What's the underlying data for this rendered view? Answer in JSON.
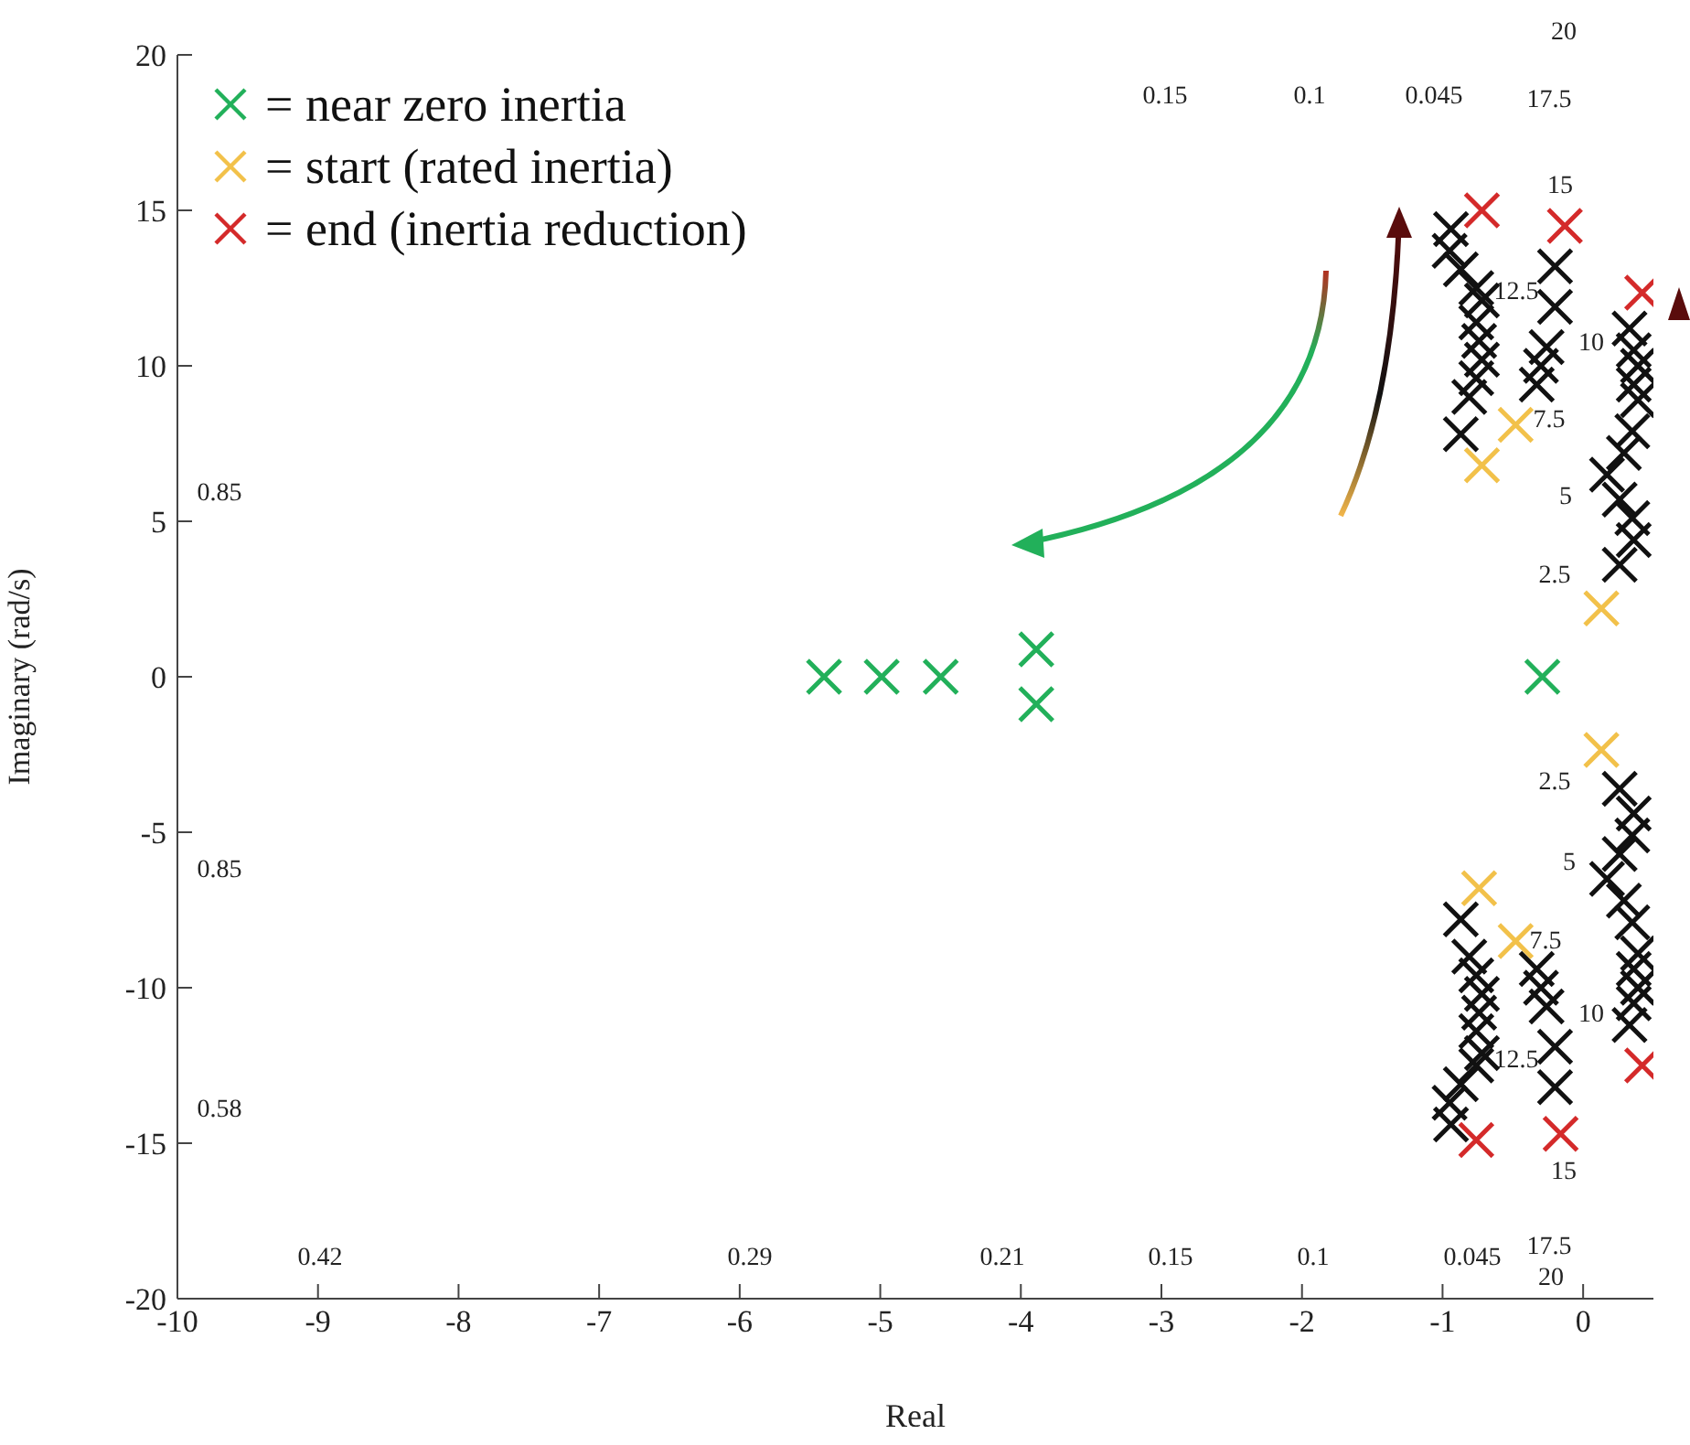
{
  "chart_data": {
    "type": "scatter",
    "xlabel": "Real",
    "ylabel": "Imaginary (rad/s)",
    "xlim": [
      -10,
      0.5
    ],
    "xticks": [
      -10,
      -9,
      -8,
      -7,
      -6,
      -5,
      -4,
      -3,
      -2,
      -1,
      0
    ],
    "ylim": [
      -20,
      20
    ],
    "yticks": [
      -20,
      -15,
      -10,
      -5,
      0,
      5,
      10,
      15,
      20
    ],
    "legend": "top left",
    "marker": "cross",
    "series": [
      {
        "name": "= near zero inertia",
        "color": "#22b05a",
        "x": [
          -0.29,
          -5.4,
          -4.99,
          -4.57,
          -3.89,
          -3.89
        ],
        "values": [
          0,
          0,
          0,
          0,
          0.88,
          -0.88
        ]
      },
      {
        "name": "= start (rated inertia)",
        "color": "#f2c14a",
        "x": [
          -0.48,
          -0.72,
          0.13,
          0.13,
          -0.74,
          -0.48
        ],
        "values": [
          8.1,
          6.8,
          2.2,
          -2.35,
          -6.8,
          -8.5
        ]
      },
      {
        "name": "= end (inertia reduction)",
        "color": "#d42a2a",
        "x": [
          -0.72,
          -0.13,
          0.42,
          -0.76,
          -0.16,
          0.42
        ],
        "values": [
          15.0,
          14.5,
          12.35,
          -14.9,
          -14.7,
          -12.5
        ]
      },
      {
        "color": "#111111",
        "x": [
          -0.94,
          -0.95,
          -0.87,
          -0.76,
          -0.72,
          -0.76,
          -0.74,
          -0.72,
          -0.76,
          -0.81,
          -0.87,
          -0.2,
          -0.2,
          -0.26,
          -0.3,
          -0.33,
          0.33,
          0.36,
          0.39,
          0.36,
          0.39,
          0.35,
          0.29,
          0.17,
          0.26,
          0.35,
          0.36,
          0.26,
          -0.94,
          -0.95,
          -0.87,
          -0.76,
          -0.72,
          -0.76,
          -0.74,
          -0.72,
          -0.76,
          -0.81,
          -0.87,
          -0.2,
          -0.2,
          -0.26,
          -0.3,
          -0.33,
          0.33,
          0.36,
          0.39,
          0.36,
          0.39,
          0.35,
          0.29,
          0.17,
          0.26,
          0.35,
          0.36,
          0.26
        ],
        "values": [
          14.4,
          13.7,
          13.1,
          12.5,
          12.1,
          11.4,
          10.8,
          10.2,
          9.6,
          9.0,
          7.8,
          13.2,
          11.9,
          10.6,
          10.0,
          9.4,
          11.2,
          10.5,
          10.0,
          9.4,
          8.9,
          7.9,
          7.2,
          6.5,
          5.7,
          5.1,
          4.4,
          3.6,
          -14.4,
          -13.7,
          -13.1,
          -12.5,
          -12.1,
          -11.4,
          -10.8,
          -10.2,
          -9.6,
          -9.0,
          -7.8,
          -13.2,
          -11.9,
          -10.6,
          -10.0,
          -9.4,
          -11.2,
          -10.5,
          -10.0,
          -9.4,
          -8.9,
          -7.9,
          -7.2,
          -6.5,
          -5.7,
          -5.1,
          -4.4,
          -3.6
        ]
      }
    ],
    "annotations": [
      "0.15",
      "0.1",
      "0.045",
      "0.85",
      "0.85",
      "0.58",
      "0.42",
      "0.29",
      "0.21",
      "0.15",
      "0.1",
      "0.045",
      "20",
      "17.5",
      "15",
      "12.5",
      "10",
      "7.5",
      "5",
      "2.5",
      "2.5",
      "5",
      "7.5",
      "10",
      "12.5",
      "15",
      "17.5",
      "20"
    ]
  }
}
